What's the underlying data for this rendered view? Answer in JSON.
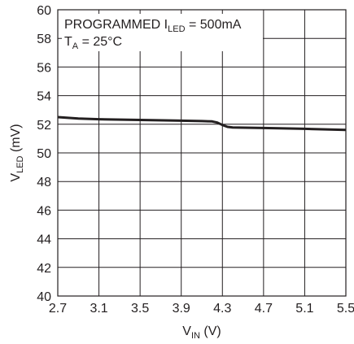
{
  "chart_data": {
    "type": "line",
    "title": "",
    "xlabel": {
      "main": "V",
      "sub": "IN",
      "unit": " (V)"
    },
    "ylabel": {
      "main": "V",
      "sub": "LED",
      "unit": " (mV)"
    },
    "xlim": [
      2.7,
      5.5
    ],
    "ylim": [
      40,
      60
    ],
    "xticks": [
      2.7,
      3.1,
      3.5,
      3.9,
      4.3,
      4.7,
      5.1,
      5.5
    ],
    "yticks": [
      40,
      42,
      44,
      46,
      48,
      50,
      52,
      54,
      56,
      58,
      60
    ],
    "grid": true,
    "annotations": [
      {
        "parts": [
          {
            "t": "PROGRAMMED I"
          },
          {
            "t": "LED",
            "sub": true
          },
          {
            "t": " = 500mA"
          }
        ]
      },
      {
        "parts": [
          {
            "t": "T"
          },
          {
            "t": "A",
            "sub": true
          },
          {
            "t": " = 25°C"
          }
        ]
      }
    ],
    "series": [
      {
        "x": [
          2.7,
          2.8,
          2.9,
          3.1,
          3.5,
          3.9,
          4.1,
          4.2,
          4.25,
          4.3,
          4.35,
          4.4,
          4.7,
          5.1,
          5.5
        ],
        "y": [
          52.5,
          52.45,
          52.4,
          52.35,
          52.3,
          52.25,
          52.22,
          52.2,
          52.12,
          51.95,
          51.82,
          51.78,
          51.74,
          51.68,
          51.6
        ]
      }
    ]
  },
  "colors": {
    "line": "#231f20",
    "grid": "#231f20",
    "background": "#ffffff"
  }
}
